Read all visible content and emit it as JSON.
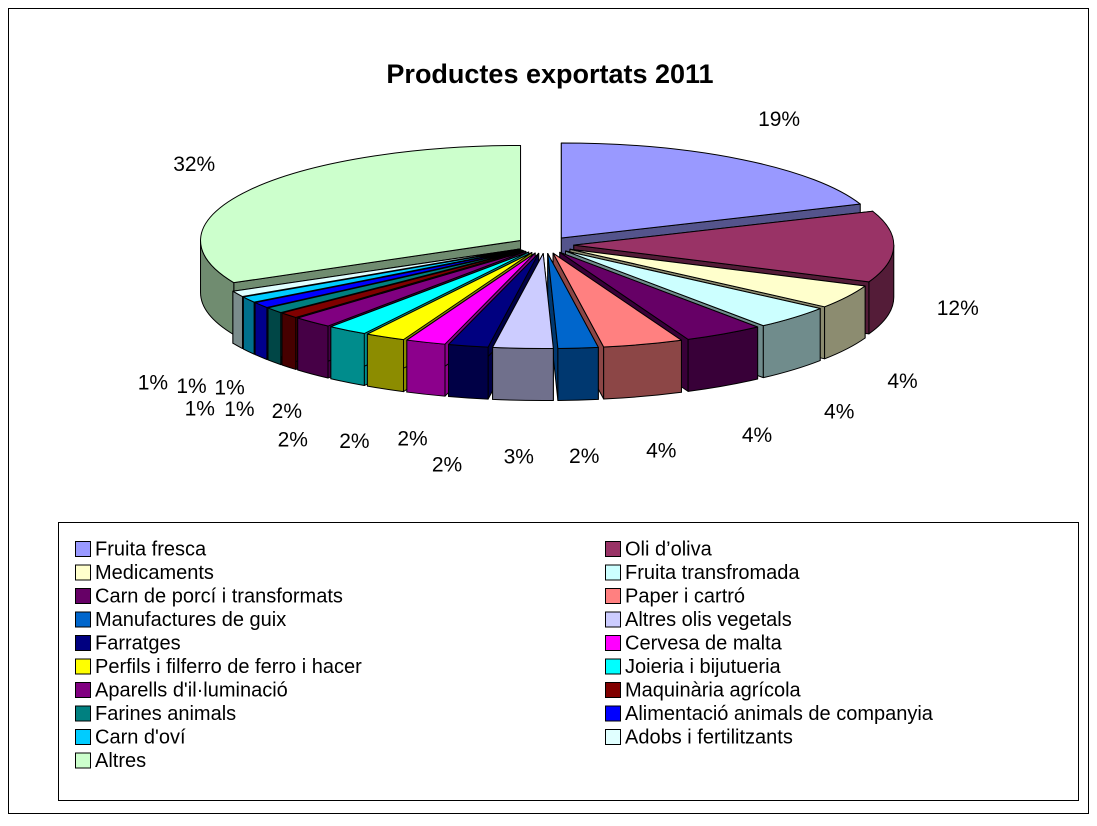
{
  "chart_data": {
    "type": "pie3d",
    "title": "Productes exportats 2011",
    "categories": [
      "Fruita fresca",
      "Oli d’oliva",
      "Medicaments",
      "Fruita transfromada",
      "Carn de porcí i transformats",
      "Paper i cartró",
      "Manufactures de guix",
      "Altres olis vegetals",
      "Farratges",
      "Cervesa de malta",
      "Perfils i filferro de ferro i hacer",
      "Joieria i bijutueria",
      "Aparells d'il·luminació",
      "Maquinària agrícola",
      "Farines animals",
      "Alimentació animals de companyia",
      "Carn d'oví",
      "Adobs i fertilitzants",
      "Altres"
    ],
    "values": [
      19,
      12,
      4,
      4,
      4,
      4,
      2,
      3,
      2,
      2,
      2,
      2,
      2,
      1,
      1,
      1,
      1,
      1,
      32
    ],
    "value_labels": [
      "19%",
      "12%",
      "4%",
      "4%",
      "4%",
      "4%",
      "2%",
      "3%",
      "2%",
      "2%",
      "2%",
      "2%",
      "2%",
      "1%",
      "1%",
      "1%",
      "1%",
      "1%",
      "32%"
    ],
    "colors": [
      "#9999ff",
      "#993366",
      "#ffffcc",
      "#ccffff",
      "#660066",
      "#ff8080",
      "#0066cc",
      "#ccccff",
      "#000080",
      "#ff00ff",
      "#ffff00",
      "#00ffff",
      "#800080",
      "#800000",
      "#008080",
      "#0000ff",
      "#00ccff",
      "#e0ffff",
      "#ccffcc"
    ]
  }
}
